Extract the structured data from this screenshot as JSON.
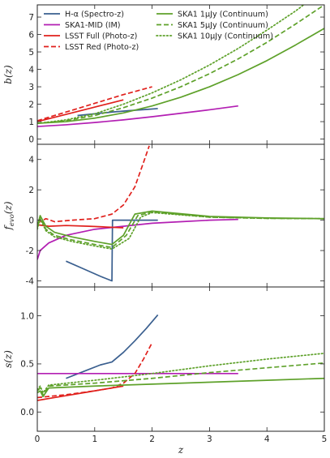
{
  "figure": {
    "xlabel": "z"
  },
  "colors": {
    "halpha": "#3a5f8f",
    "ska_mid": "#b31fb3",
    "lsst": "#e0201c",
    "ska1": "#5ea12a"
  },
  "legend": [
    {
      "label": "H-α (Spectro-z)",
      "color": "#3a5f8f",
      "dash": "solid"
    },
    {
      "label": "SKA1-MID (IM)",
      "color": "#b31fb3",
      "dash": "solid"
    },
    {
      "label": "LSST Full (Photo-z)",
      "color": "#e0201c",
      "dash": "solid"
    },
    {
      "label": "LSST Red (Photo-z)",
      "color": "#e0201c",
      "dash": "dashed"
    },
    {
      "label": "SKA1 1μJy (Continuum)",
      "color": "#5ea12a",
      "dash": "solid"
    },
    {
      "label": "SKA1 5μJy (Continuum)",
      "color": "#5ea12a",
      "dash": "dashed"
    },
    {
      "label": "SKA1 10μJy (Continuum)",
      "color": "#5ea12a",
      "dash": "dotted"
    }
  ],
  "chart_data": [
    {
      "type": "line",
      "ylabel": "b(z)",
      "xlim": [
        0,
        5
      ],
      "ylim": [
        -0.3,
        7.7
      ],
      "yticks": [
        0,
        1,
        2,
        3,
        4,
        5,
        6,
        7
      ],
      "series": [
        {
          "name": "H-α (Spectro-z)",
          "color": "#3a5f8f",
          "dash": "solid",
          "x": [
            0.7,
            1.0,
            1.3,
            1.6,
            1.9,
            2.1
          ],
          "y": [
            1.35,
            1.45,
            1.55,
            1.63,
            1.7,
            1.75
          ]
        },
        {
          "name": "SKA1-MID (IM)",
          "color": "#b31fb3",
          "dash": "solid",
          "x": [
            0,
            0.5,
            1.0,
            1.5,
            2.0,
            2.5,
            3.0,
            3.5
          ],
          "y": [
            0.72,
            0.82,
            0.95,
            1.1,
            1.28,
            1.48,
            1.68,
            1.9
          ]
        },
        {
          "name": "LSST Full (Photo-z)",
          "color": "#e0201c",
          "dash": "solid",
          "x": [
            0,
            0.3,
            0.6,
            0.9,
            1.2,
            1.5
          ],
          "y": [
            1.0,
            1.25,
            1.5,
            1.75,
            2.0,
            2.25
          ]
        },
        {
          "name": "LSST Red (Photo-z)",
          "color": "#e0201c",
          "dash": "dashed",
          "x": [
            0,
            0.5,
            1.0,
            1.5,
            2.0
          ],
          "y": [
            1.05,
            1.55,
            2.05,
            2.55,
            3.0
          ]
        },
        {
          "name": "SKA1 1μJy (Continuum)",
          "color": "#5ea12a",
          "dash": "solid",
          "x": [
            0,
            0.5,
            1.0,
            1.5,
            2.0,
            2.5,
            3.0,
            3.5,
            4.0,
            4.5,
            5.0
          ],
          "y": [
            0.9,
            1.0,
            1.2,
            1.5,
            1.9,
            2.4,
            3.0,
            3.7,
            4.5,
            5.4,
            6.35
          ]
        },
        {
          "name": "SKA1 5μJy (Continuum)",
          "color": "#5ea12a",
          "dash": "dashed",
          "x": [
            0,
            0.5,
            1.0,
            1.5,
            2.0,
            2.5,
            3.0,
            3.5,
            4.0,
            4.5,
            5.0
          ],
          "y": [
            0.9,
            1.05,
            1.35,
            1.8,
            2.35,
            3.0,
            3.75,
            4.6,
            5.55,
            6.6,
            7.7
          ]
        },
        {
          "name": "SKA1 10μJy (Continuum)",
          "color": "#5ea12a",
          "dash": "dotted",
          "x": [
            0,
            0.5,
            1.0,
            1.5,
            2.0,
            2.5,
            3.0,
            3.5,
            4.0,
            4.5,
            4.8
          ],
          "y": [
            0.9,
            1.1,
            1.45,
            2.0,
            2.65,
            3.4,
            4.25,
            5.2,
            6.25,
            7.35,
            8.1
          ]
        }
      ]
    },
    {
      "type": "line",
      "ylabel": "f_evo(z)",
      "xlim": [
        0,
        5
      ],
      "ylim": [
        -4.4,
        5.0
      ],
      "yticks": [
        -4,
        -2,
        0,
        2,
        4
      ],
      "series": [
        {
          "name": "H-α (Spectro-z)",
          "color": "#3a5f8f",
          "dash": "solid",
          "x": [
            0.5,
            0.8,
            1.1,
            1.3,
            1.31,
            1.33,
            2.1
          ],
          "y": [
            -2.7,
            -3.2,
            -3.7,
            -4.0,
            0.0,
            0.0,
            0.0
          ]
        },
        {
          "name": "SKA1-MID (IM)",
          "color": "#b31fb3",
          "dash": "solid",
          "x": [
            0,
            0.05,
            0.2,
            0.5,
            1.0,
            1.5,
            2.0,
            2.5,
            3.0,
            3.5
          ],
          "y": [
            -2.6,
            -2.0,
            -1.5,
            -1.0,
            -0.6,
            -0.4,
            -0.2,
            -0.1,
            0.0,
            0.05
          ]
        },
        {
          "name": "LSST Full (Photo-z)",
          "color": "#e0201c",
          "dash": "solid",
          "x": [
            0,
            0.2,
            0.5,
            0.9,
            1.2,
            1.5
          ],
          "y": [
            -0.3,
            -0.4,
            -0.35,
            -0.4,
            -0.45,
            -0.5
          ]
        },
        {
          "name": "LSST Red (Photo-z)",
          "color": "#e0201c",
          "dash": "dashed",
          "x": [
            0,
            0.15,
            0.3,
            0.6,
            1.0,
            1.3,
            1.5,
            1.7,
            1.85,
            1.95
          ],
          "y": [
            -0.2,
            0.1,
            -0.1,
            0.0,
            0.1,
            0.4,
            1.0,
            2.2,
            3.8,
            4.9
          ]
        },
        {
          "name": "SKA1 1μJy (Continuum)",
          "color": "#5ea12a",
          "dash": "solid",
          "x": [
            0,
            0.05,
            0.15,
            0.3,
            0.6,
            1.0,
            1.3,
            1.5,
            1.7,
            2.0,
            3.0,
            4.0,
            5.0
          ],
          "y": [
            -0.4,
            0.3,
            -0.4,
            -0.8,
            -1.1,
            -1.4,
            -1.6,
            -1.0,
            0.4,
            0.6,
            0.25,
            0.15,
            0.1
          ]
        },
        {
          "name": "SKA1 5μJy (Continuum)",
          "color": "#5ea12a",
          "dash": "dashed",
          "x": [
            0,
            0.05,
            0.15,
            0.3,
            0.6,
            1.0,
            1.3,
            1.55,
            1.75,
            2.0,
            3.0,
            4.0,
            5.0
          ],
          "y": [
            -0.5,
            0.2,
            -0.6,
            -1.0,
            -1.3,
            -1.6,
            -1.8,
            -1.0,
            0.3,
            0.55,
            0.2,
            0.12,
            0.1
          ]
        },
        {
          "name": "SKA1 10μJy (Continuum)",
          "color": "#5ea12a",
          "dash": "dotted",
          "x": [
            0,
            0.05,
            0.15,
            0.3,
            0.6,
            1.0,
            1.3,
            1.6,
            1.8,
            2.0,
            3.0,
            4.0,
            5.0
          ],
          "y": [
            -0.6,
            0.1,
            -0.7,
            -1.1,
            -1.4,
            -1.7,
            -1.9,
            -1.2,
            0.2,
            0.5,
            0.2,
            0.12,
            0.1
          ]
        }
      ]
    },
    {
      "type": "line",
      "ylabel": "s(z)",
      "xlim": [
        0,
        5
      ],
      "ylim": [
        -0.2,
        1.3
      ],
      "yticks": [
        0.0,
        0.5,
        1.0
      ],
      "series": [
        {
          "name": "H-α (Spectro-z)",
          "color": "#3a5f8f",
          "dash": "solid",
          "x": [
            0.5,
            0.8,
            1.1,
            1.3,
            1.5,
            1.7,
            1.9,
            2.1
          ],
          "y": [
            0.35,
            0.42,
            0.49,
            0.52,
            0.62,
            0.74,
            0.87,
            1.01
          ]
        },
        {
          "name": "SKA1-MID (IM)",
          "color": "#b31fb3",
          "dash": "solid",
          "x": [
            0,
            3.5
          ],
          "y": [
            0.4,
            0.4
          ]
        },
        {
          "name": "LSST Full (Photo-z)",
          "color": "#e0201c",
          "dash": "solid",
          "x": [
            0,
            0.3,
            0.6,
            0.9,
            1.2,
            1.5
          ],
          "y": [
            0.12,
            0.15,
            0.18,
            0.21,
            0.24,
            0.27
          ]
        },
        {
          "name": "LSST Red (Photo-z)",
          "color": "#e0201c",
          "dash": "dashed",
          "x": [
            0,
            0.5,
            1.0,
            1.3,
            1.5,
            1.7,
            1.85,
            2.0
          ],
          "y": [
            0.15,
            0.18,
            0.22,
            0.25,
            0.3,
            0.4,
            0.55,
            0.72
          ]
        },
        {
          "name": "SKA1 1μJy (Continuum)",
          "color": "#5ea12a",
          "dash": "solid",
          "x": [
            0,
            0.05,
            0.1,
            0.2,
            1.0,
            2.0,
            3.0,
            4.0,
            5.0
          ],
          "y": [
            0.2,
            0.22,
            0.16,
            0.25,
            0.27,
            0.29,
            0.31,
            0.33,
            0.35
          ]
        },
        {
          "name": "SKA1 5μJy (Continuum)",
          "color": "#5ea12a",
          "dash": "dashed",
          "x": [
            0,
            0.05,
            0.1,
            0.2,
            1.0,
            2.0,
            3.0,
            4.0,
            5.0
          ],
          "y": [
            0.22,
            0.25,
            0.18,
            0.27,
            0.3,
            0.35,
            0.41,
            0.46,
            0.51
          ]
        },
        {
          "name": "SKA1 10μJy (Continuum)",
          "color": "#5ea12a",
          "dash": "dotted",
          "x": [
            0,
            0.05,
            0.1,
            0.2,
            1.0,
            2.0,
            3.0,
            4.0,
            5.0
          ],
          "y": [
            0.23,
            0.27,
            0.2,
            0.28,
            0.33,
            0.4,
            0.48,
            0.55,
            0.61
          ]
        }
      ]
    }
  ],
  "x_ticks": [
    0,
    1,
    2,
    3,
    4,
    5
  ]
}
